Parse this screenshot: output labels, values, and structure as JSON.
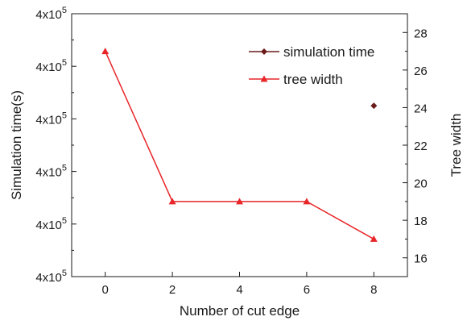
{
  "chart_data": {
    "type": "line",
    "xlabel": "Number of cut edge",
    "ylabel_left": "Simulation time(s)",
    "ylabel_right": "Tree width",
    "x_ticks": [
      "0",
      "2",
      "4",
      "6",
      "8"
    ],
    "xlim": [
      -1,
      9
    ],
    "left_tick_labels": [
      {
        "base": "4x10",
        "exp": "5"
      },
      {
        "base": "4x10",
        "exp": "5"
      },
      {
        "base": "4x10",
        "exp": "5"
      },
      {
        "base": "4x10",
        "exp": "5"
      },
      {
        "base": "4x10",
        "exp": "5"
      },
      {
        "base": "4x10",
        "exp": "5"
      }
    ],
    "right_ticks": [
      16,
      18,
      20,
      22,
      24,
      26,
      28
    ],
    "right_ylim": [
      15,
      29
    ],
    "series": [
      {
        "name": "simulation time",
        "axis": "left",
        "marker": "diamond",
        "color": "#6b1a1a",
        "x": [
          8
        ],
        "y_right_equiv": [
          24.1
        ]
      },
      {
        "name": "tree width",
        "axis": "right",
        "marker": "triangle",
        "color": "#e8262a",
        "x": [
          0,
          2,
          4,
          6,
          8
        ],
        "y": [
          27,
          19,
          19,
          19,
          17
        ]
      }
    ],
    "legend_position": "top-right"
  }
}
